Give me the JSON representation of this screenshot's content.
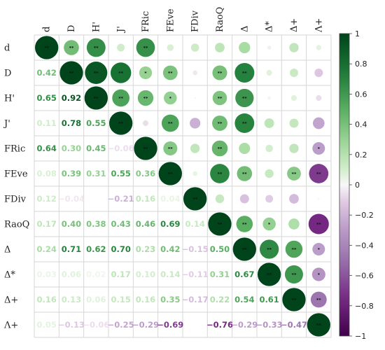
{
  "chart_data": {
    "type": "heatmap",
    "subtype": "correlation-matrix",
    "variables": [
      "d",
      "D",
      "H'",
      "J'",
      "FRic",
      "FEve",
      "FDiv",
      "RaoQ",
      "Δ",
      "Δ*",
      "Δ+",
      "Λ+"
    ],
    "lower_triangle_format": "numbers",
    "upper_triangle_format": "circles",
    "significance_marker": "**",
    "lower_triangle": [
      [],
      [
        0.42
      ],
      [
        0.65,
        0.92
      ],
      [
        0.11,
        0.78,
        0.55
      ],
      [
        0.64,
        0.3,
        0.45,
        -0.06
      ],
      [
        0.08,
        0.39,
        0.31,
        0.55,
        0.36
      ],
      [
        0.12,
        -0.04,
        null,
        -0.21,
        0.16,
        0.04
      ],
      [
        0.17,
        0.4,
        0.38,
        0.43,
        0.46,
        0.69,
        0.14
      ],
      [
        0.24,
        0.71,
        0.62,
        0.7,
        0.23,
        0.42,
        -0.15,
        0.5
      ],
      [
        0.03,
        0.06,
        0.02,
        0.17,
        0.1,
        0.14,
        -0.11,
        0.31,
        0.67
      ],
      [
        0.16,
        0.13,
        0.06,
        0.15,
        0.16,
        0.35,
        -0.17,
        0.22,
        0.54,
        0.61
      ],
      [
        0.05,
        -0.13,
        -0.06,
        -0.25,
        -0.29,
        -0.69,
        null,
        -0.76,
        -0.29,
        -0.33,
        -0.47
      ]
    ],
    "upper_triangle_significance": [
      [
        "**",
        "**",
        "**",
        "",
        "**",
        "",
        "",
        "",
        "",
        "",
        "",
        ""
      ],
      [
        "",
        "**",
        "**",
        "**",
        "*",
        "**",
        "",
        "**",
        "**",
        "",
        "",
        ""
      ],
      [
        "",
        "",
        "**",
        "**",
        "**",
        "*",
        "",
        "**",
        "**",
        "",
        "",
        ""
      ],
      [
        "",
        "",
        "",
        "**",
        "",
        "**",
        "",
        "**",
        "**",
        "",
        "",
        ""
      ],
      [
        "",
        "",
        "",
        "",
        "**",
        "**",
        "",
        "**",
        "",
        "",
        "",
        "*"
      ],
      [
        "",
        "",
        "",
        "",
        "",
        "**",
        "",
        "**",
        "**",
        "",
        "**",
        "**"
      ],
      [
        "",
        "",
        "",
        "",
        "",
        "",
        "**",
        "",
        "",
        "",
        "",
        ""
      ],
      [
        "",
        "",
        "",
        "",
        "",
        "",
        "",
        "**",
        "**",
        "*",
        "",
        "**"
      ],
      [
        "",
        "",
        "",
        "",
        "",
        "",
        "",
        "",
        "**",
        "**",
        "**",
        "*"
      ],
      [
        "",
        "",
        "",
        "",
        "",
        "",
        "",
        "",
        "",
        "**",
        "**",
        "*"
      ],
      [
        "",
        "",
        "",
        "",
        "",
        "",
        "",
        "",
        "",
        "",
        "**",
        "**"
      ],
      [
        "",
        "",
        "",
        "",
        "",
        "",
        "",
        "",
        "",
        "",
        "",
        "**"
      ]
    ],
    "colorbar": {
      "ticks": [
        1,
        0.8,
        0.6,
        0.4,
        0.2,
        0,
        -0.2,
        -0.4,
        -0.6,
        -0.8,
        -1
      ],
      "range": [
        -1,
        1
      ],
      "low_color": "#40004b",
      "mid_color": "#f7f7f7",
      "high_color": "#00441b"
    },
    "legend_position": "right",
    "grid": true
  }
}
